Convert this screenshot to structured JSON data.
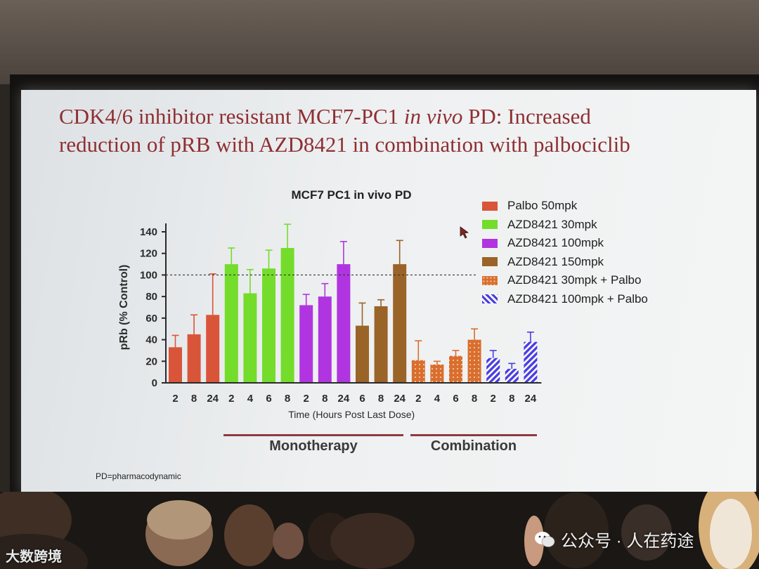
{
  "slide": {
    "title_line1_a": "CDK4/6 inhibitor resistant MCF7-PC1 ",
    "title_line1_italic": "in vivo",
    "title_line1_b": " PD: Increased",
    "title_line2": "reduction of pRB with AZD8421 in combination with palbociclib",
    "footnote": "PD=pharmacodynamic",
    "group_monotherapy": "Monotherapy",
    "group_combination": "Combination"
  },
  "watermarks": {
    "left": "大数跨境",
    "right": "公众号 · 人在药途"
  },
  "colors": {
    "title": "#8e2f33",
    "group_line": "#8e3a40"
  },
  "chart_data": {
    "type": "bar",
    "title": "MCF7 PC1 in vivo PD",
    "xlabel": "Time (Hours Post Last Dose)",
    "ylabel": "pRb (% Control)",
    "ylim": [
      0,
      140
    ],
    "yticks": [
      0,
      20,
      40,
      60,
      80,
      100,
      120,
      140
    ],
    "reference_line": 100,
    "series": [
      {
        "name": "Palbo 50mpk",
        "color": "#d9553a",
        "pattern": "solid",
        "x": [
          "2",
          "8",
          "24"
        ],
        "values": [
          33,
          45,
          63
        ],
        "errors": [
          11,
          18,
          38
        ]
      },
      {
        "name": "AZD8421 30mpk",
        "color": "#74dc2a",
        "pattern": "solid",
        "x": [
          "2",
          "4",
          "6",
          "8"
        ],
        "values": [
          110,
          83,
          106,
          125
        ],
        "errors": [
          15,
          22,
          17,
          22
        ]
      },
      {
        "name": "AZD8421 100mpk",
        "color": "#b035e0",
        "pattern": "solid",
        "x": [
          "2",
          "8",
          "24"
        ],
        "values": [
          72,
          80,
          110
        ],
        "errors": [
          10,
          12,
          21
        ]
      },
      {
        "name": "AZD8421 150mpk",
        "color": "#9a6328",
        "pattern": "solid",
        "x": [
          "6",
          "8",
          "24"
        ],
        "values": [
          53,
          71,
          110
        ],
        "errors": [
          21,
          6,
          22
        ]
      },
      {
        "name": "AZD8421 30mpk + Palbo",
        "color": "#d96e2e",
        "pattern": "dots",
        "x": [
          "2",
          "4",
          "6",
          "8"
        ],
        "values": [
          21,
          17,
          25,
          40
        ],
        "errors": [
          18,
          3,
          5,
          10
        ]
      },
      {
        "name": "AZD8421 100mpk + Palbo",
        "color": "#4a3ee0",
        "pattern": "stripes",
        "x": [
          "2",
          "8",
          "24"
        ],
        "values": [
          23,
          13,
          38
        ],
        "errors": [
          7,
          5,
          9
        ]
      }
    ]
  }
}
